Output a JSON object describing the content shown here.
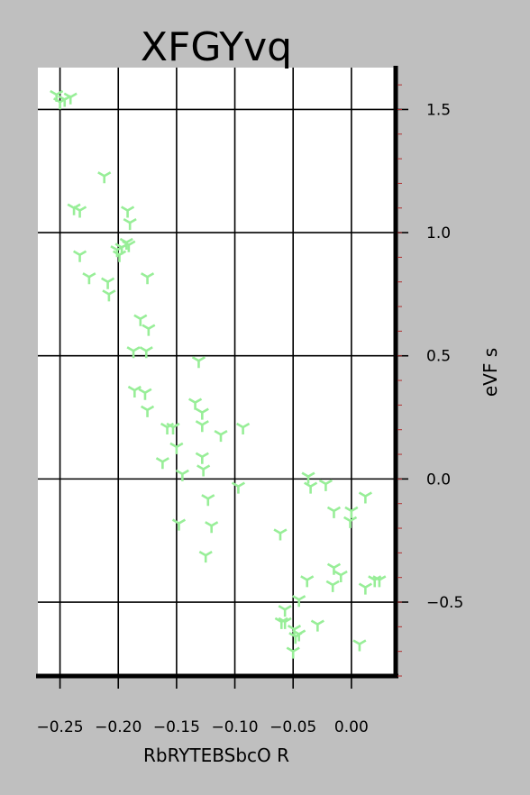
{
  "chart_data": {
    "type": "scatter",
    "title": "XFGYvq",
    "xlabel": "RbRYTEBSbcO R",
    "ylabel": "eVF s",
    "xlim": [
      -0.269,
      0.038
    ],
    "ylim": [
      -0.8,
      1.67
    ],
    "xticks": [
      -0.25,
      -0.2,
      -0.15,
      -0.1,
      -0.05,
      0.0
    ],
    "xtick_labels": [
      "−0.25",
      "−0.20",
      "−0.15",
      "−0.10",
      "−0.05",
      "0.00"
    ],
    "yticks": [
      -0.5,
      0.0,
      0.5,
      1.0,
      1.5
    ],
    "ytick_labels": [
      "−0.5",
      "0.0",
      "0.5",
      "1.0",
      "1.5"
    ],
    "grid": true,
    "y_axis_side": "right",
    "marker": "tri_down",
    "marker_color": "#98ee98",
    "background_color": "#bfbfbf",
    "plot_background_color": "#ffffff",
    "points": [
      [
        -0.253,
        1.56
      ],
      [
        -0.25,
        1.53
      ],
      [
        -0.246,
        1.54
      ],
      [
        -0.241,
        1.55
      ],
      [
        -0.212,
        1.23
      ],
      [
        -0.238,
        1.1
      ],
      [
        -0.233,
        1.09
      ],
      [
        -0.192,
        1.09
      ],
      [
        -0.19,
        1.04
      ],
      [
        -0.193,
        0.96
      ],
      [
        -0.191,
        0.95
      ],
      [
        -0.197,
        0.94
      ],
      [
        -0.201,
        0.93
      ],
      [
        -0.199,
        0.91
      ],
      [
        -0.233,
        0.91
      ],
      [
        -0.225,
        0.82
      ],
      [
        -0.209,
        0.8
      ],
      [
        -0.208,
        0.75
      ],
      [
        -0.175,
        0.82
      ],
      [
        -0.181,
        0.65
      ],
      [
        -0.174,
        0.61
      ],
      [
        -0.187,
        0.52
      ],
      [
        -0.176,
        0.52
      ],
      [
        -0.131,
        0.48
      ],
      [
        -0.186,
        0.36
      ],
      [
        -0.177,
        0.35
      ],
      [
        -0.175,
        0.28
      ],
      [
        -0.134,
        0.31
      ],
      [
        -0.128,
        0.27
      ],
      [
        -0.158,
        0.21
      ],
      [
        -0.153,
        0.21
      ],
      [
        -0.128,
        0.22
      ],
      [
        -0.112,
        0.18
      ],
      [
        -0.093,
        0.21
      ],
      [
        -0.15,
        0.13
      ],
      [
        -0.162,
        0.07
      ],
      [
        -0.128,
        0.09
      ],
      [
        -0.127,
        0.04
      ],
      [
        -0.145,
        0.02
      ],
      [
        -0.123,
        -0.08
      ],
      [
        -0.097,
        -0.03
      ],
      [
        -0.148,
        -0.18
      ],
      [
        -0.12,
        -0.19
      ],
      [
        -0.125,
        -0.31
      ],
      [
        -0.061,
        -0.22
      ],
      [
        -0.037,
        0.01
      ],
      [
        -0.035,
        -0.03
      ],
      [
        -0.022,
        -0.02
      ],
      [
        -0.015,
        -0.13
      ],
      [
        0.0,
        -0.13
      ],
      [
        -0.001,
        -0.17
      ],
      [
        0.012,
        -0.07
      ],
      [
        -0.015,
        -0.36
      ],
      [
        -0.009,
        -0.39
      ],
      [
        -0.016,
        -0.43
      ],
      [
        -0.038,
        -0.41
      ],
      [
        0.012,
        -0.44
      ],
      [
        0.02,
        -0.41
      ],
      [
        0.024,
        -0.41
      ],
      [
        -0.045,
        -0.49
      ],
      [
        -0.057,
        -0.53
      ],
      [
        -0.06,
        -0.58
      ],
      [
        -0.057,
        -0.58
      ],
      [
        -0.049,
        -0.61
      ],
      [
        -0.048,
        -0.64
      ],
      [
        -0.045,
        -0.63
      ],
      [
        -0.05,
        -0.7
      ],
      [
        -0.029,
        -0.59
      ],
      [
        0.007,
        -0.67
      ]
    ]
  }
}
